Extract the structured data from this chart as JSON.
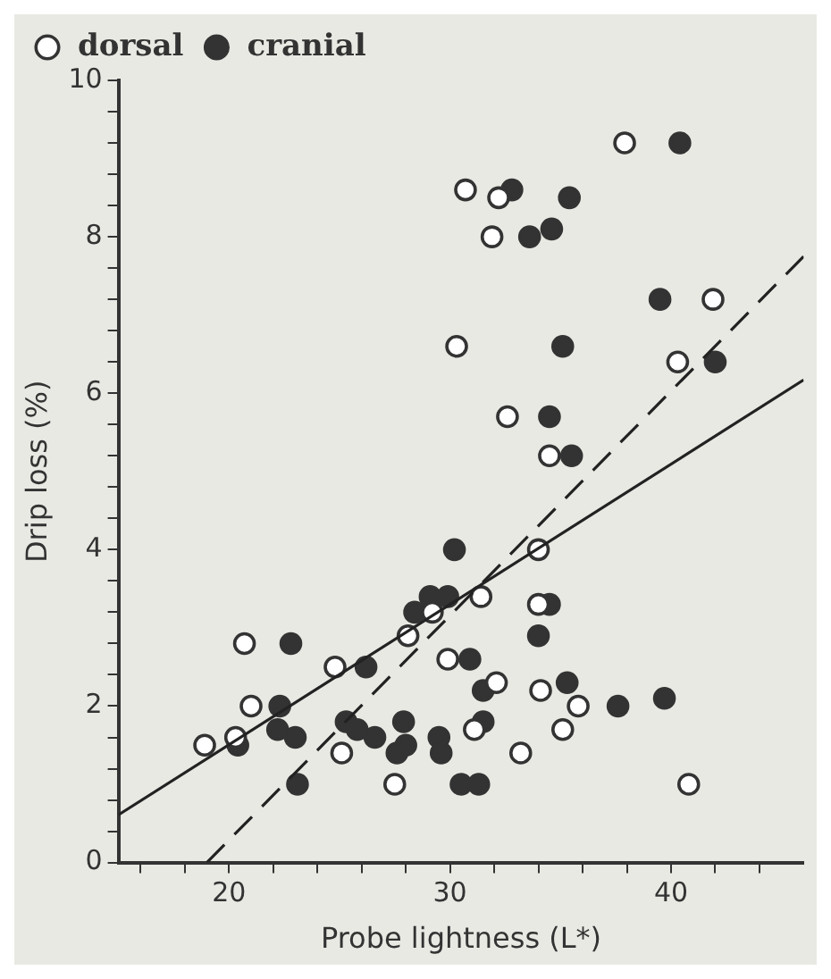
{
  "chart_data": {
    "type": "scatter",
    "xlabel": "Probe lightness (L*)",
    "ylabel": "Drip loss (%)",
    "xlim": [
      15,
      46
    ],
    "ylim": [
      0,
      10
    ],
    "xticks": [
      {
        "value": 16,
        "label": null
      },
      {
        "value": 18,
        "label": null
      },
      20,
      {
        "value": 22,
        "label": null
      },
      {
        "value": 24,
        "label": null
      },
      {
        "value": 26,
        "label": null
      },
      {
        "value": 28,
        "label": null
      },
      30,
      {
        "value": 32,
        "label": null
      },
      {
        "value": 34,
        "label": null
      },
      {
        "value": 36,
        "label": null
      },
      {
        "value": 38,
        "label": null
      },
      40,
      {
        "value": 42,
        "label": null
      },
      {
        "value": 44,
        "label": null
      }
    ],
    "yticks": [
      0,
      {
        "value": 0.4,
        "label": null
      },
      {
        "value": 0.8,
        "label": null
      },
      {
        "value": 1.2,
        "label": null
      },
      {
        "value": 1.6,
        "label": null
      },
      2,
      {
        "value": 2.4,
        "label": null
      },
      {
        "value": 2.8,
        "label": null
      },
      {
        "value": 3.2,
        "label": null
      },
      {
        "value": 3.6,
        "label": null
      },
      4,
      {
        "value": 4.4,
        "label": null
      },
      {
        "value": 4.8,
        "label": null
      },
      {
        "value": 5.2,
        "label": null
      },
      {
        "value": 5.6,
        "label": null
      },
      6,
      {
        "value": 6.4,
        "label": null
      },
      {
        "value": 6.8,
        "label": null
      },
      {
        "value": 7.2,
        "label": null
      },
      {
        "value": 7.6,
        "label": null
      },
      8,
      {
        "value": 8.4,
        "label": null
      },
      {
        "value": 8.8,
        "label": null
      },
      {
        "value": 9.2,
        "label": null
      },
      {
        "value": 9.6,
        "label": null
      },
      10
    ],
    "grid": false,
    "legend": "top left",
    "marker": "circle",
    "series": [
      {
        "name": "dorsal",
        "color": "#333333",
        "x": [
          37.9,
          30.7,
          32.2,
          31.9,
          41.9,
          30.3,
          40.3,
          32.6,
          34.5,
          34.0,
          31.4,
          28.1,
          20.7,
          24.8,
          29.9,
          32.1,
          34.1,
          21.0,
          35.8,
          35.1,
          20.3,
          18.9,
          25.1,
          33.2,
          27.5,
          40.8,
          34.0,
          29.2,
          31.1
        ],
        "values": [
          9.2,
          8.6,
          8.5,
          8.0,
          7.2,
          6.6,
          6.4,
          5.7,
          5.2,
          4.0,
          3.4,
          2.9,
          2.8,
          2.5,
          2.6,
          2.3,
          2.2,
          2.0,
          2.0,
          1.7,
          1.6,
          1.5,
          1.4,
          1.4,
          1.0,
          1.0,
          3.3,
          3.2,
          1.7
        ]
      },
      {
        "name": "cranial",
        "color": "#333333",
        "x": [
          40.4,
          32.8,
          35.4,
          33.6,
          34.6,
          39.5,
          35.1,
          42.0,
          34.5,
          35.5,
          30.2,
          29.1,
          29.9,
          28.4,
          34.5,
          34.0,
          22.8,
          26.2,
          30.9,
          31.5,
          35.3,
          22.3,
          37.6,
          39.7,
          22.2,
          23.0,
          20.4,
          25.3,
          25.8,
          26.6,
          27.9,
          28.0,
          27.6,
          29.5,
          29.6,
          31.5,
          23.1,
          30.5,
          31.3
        ],
        "values": [
          9.2,
          8.6,
          8.5,
          8.0,
          8.1,
          7.2,
          6.6,
          6.4,
          5.7,
          5.2,
          4.0,
          3.4,
          3.4,
          3.2,
          3.3,
          2.9,
          2.8,
          2.5,
          2.6,
          2.2,
          2.3,
          2.0,
          2.0,
          2.1,
          1.7,
          1.6,
          1.5,
          1.8,
          1.7,
          1.6,
          1.8,
          1.5,
          1.4,
          1.6,
          1.4,
          1.8,
          1.0,
          1.0,
          1.0
        ]
      },
      {
        "type": "line",
        "marker": "none",
        "color": "#222222",
        "line_style": "solid",
        "x": [
          15,
          46
        ],
        "values": [
          0.61,
          6.17
        ]
      },
      {
        "type": "line",
        "marker": "none",
        "color": "#222222",
        "line_style": "dashed",
        "x": [
          19,
          46
        ],
        "values": [
          0,
          7.75
        ]
      }
    ]
  }
}
